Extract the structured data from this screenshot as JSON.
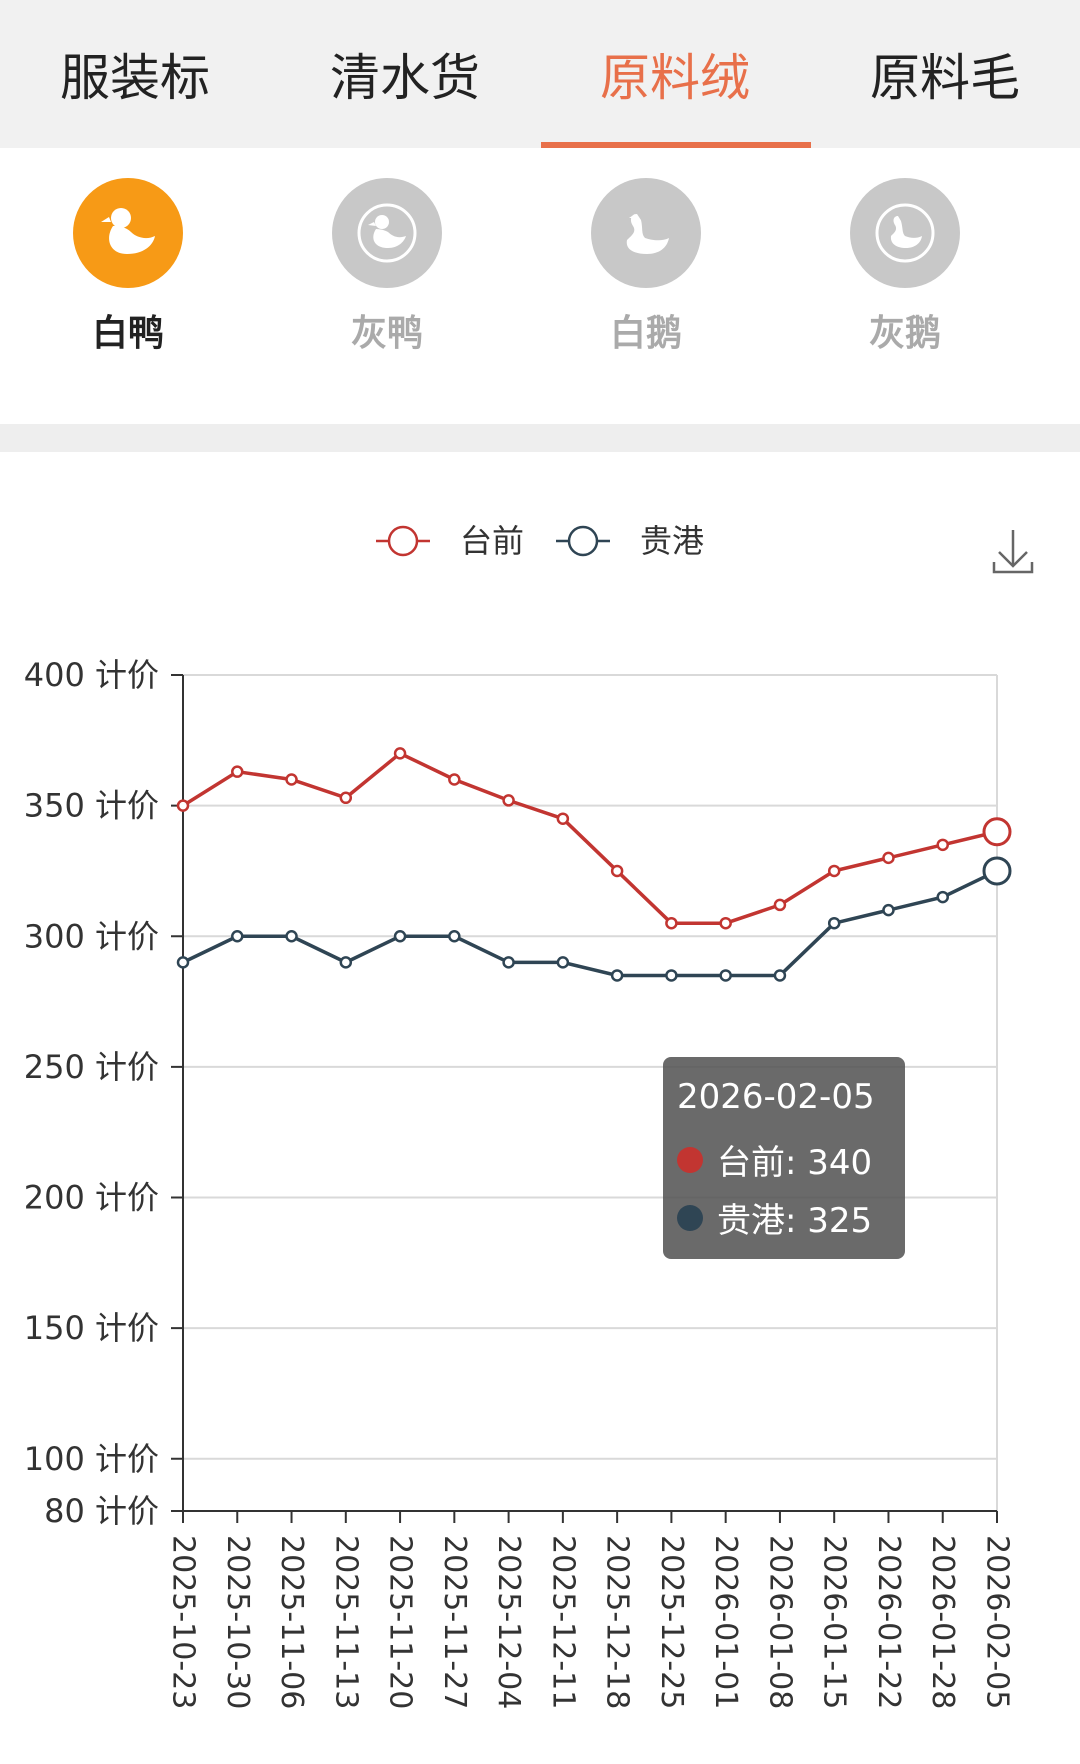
{
  "tabs": [
    {
      "label": "服装标",
      "active": false
    },
    {
      "label": "清水货",
      "active": false
    },
    {
      "label": "原料绒",
      "active": true
    },
    {
      "label": "原料毛",
      "active": false
    }
  ],
  "categories": [
    {
      "label": "白鸭",
      "icon": "duck-icon",
      "active": true
    },
    {
      "label": "灰鸭",
      "icon": "duck-icon",
      "active": false
    },
    {
      "label": "白鹅",
      "icon": "goose-icon",
      "active": false
    },
    {
      "label": "灰鹅",
      "icon": "goose-icon",
      "active": false
    }
  ],
  "colors": {
    "accent": "#e8704a",
    "active_icon": "#f79a16",
    "series_1": "#c23531",
    "series_2": "#2f4554"
  },
  "chart_data": {
    "type": "line",
    "x": [
      "2025-10-23",
      "2025-10-30",
      "2025-11-06",
      "2025-11-13",
      "2025-11-20",
      "2025-11-27",
      "2025-12-04",
      "2025-12-11",
      "2025-12-18",
      "2025-12-25",
      "2026-01-01",
      "2026-01-08",
      "2026-01-15",
      "2026-01-22",
      "2026-01-28",
      "2026-02-05"
    ],
    "series": [
      {
        "name": "台前",
        "color": "#c23531",
        "values": [
          350,
          363,
          360,
          353,
          370,
          360,
          352,
          345,
          325,
          305,
          305,
          312,
          325,
          330,
          335,
          340
        ]
      },
      {
        "name": "贵港",
        "color": "#2f4554",
        "values": [
          290,
          300,
          300,
          290,
          300,
          300,
          290,
          290,
          285,
          285,
          285,
          285,
          305,
          310,
          315,
          325
        ]
      }
    ],
    "y_ticks": [
      80,
      100,
      150,
      200,
      250,
      300,
      350,
      400
    ],
    "y_unit": "计价",
    "ylim": [
      80,
      400
    ],
    "grid": true,
    "legend_position": "top-center"
  },
  "tooltip": {
    "title": "2026-02-05",
    "rows": [
      {
        "text": "台前: 340",
        "color": "#c23531"
      },
      {
        "text": "贵港: 325",
        "color": "#2f4554"
      }
    ]
  }
}
